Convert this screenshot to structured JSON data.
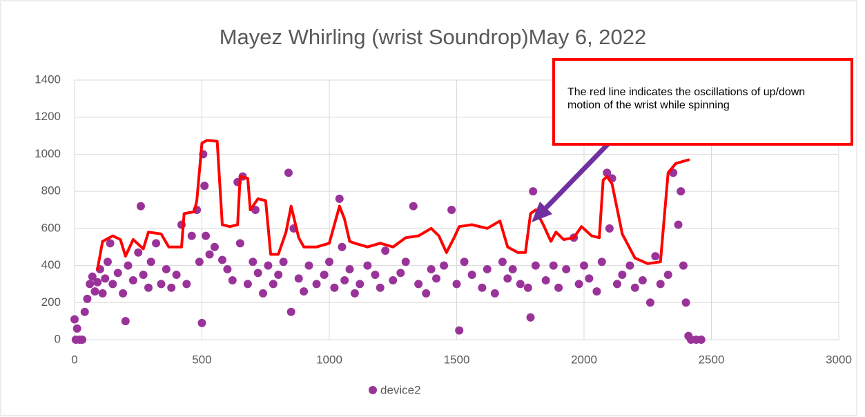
{
  "chart_data": {
    "type": "scatter",
    "title": "Mayez Whirling (wrist Soundrop)May 6, 2022",
    "annotation": "The red line indicates the oscillations of up/down motion of the wrist while spinning",
    "x": [
      0,
      5,
      10,
      20,
      30,
      40,
      50,
      60,
      70,
      80,
      90,
      100,
      110,
      120,
      130,
      140,
      150,
      170,
      190,
      200,
      210,
      230,
      250,
      260,
      270,
      290,
      300,
      320,
      340,
      360,
      380,
      400,
      420,
      440,
      460,
      480,
      490,
      500,
      505,
      510,
      515,
      530,
      550,
      580,
      600,
      620,
      640,
      650,
      660,
      680,
      700,
      710,
      720,
      740,
      760,
      780,
      800,
      820,
      840,
      850,
      860,
      880,
      900,
      920,
      950,
      980,
      1000,
      1020,
      1040,
      1050,
      1060,
      1080,
      1100,
      1120,
      1150,
      1180,
      1200,
      1220,
      1250,
      1280,
      1300,
      1330,
      1350,
      1380,
      1400,
      1420,
      1450,
      1480,
      1500,
      1510,
      1530,
      1560,
      1600,
      1620,
      1650,
      1680,
      1700,
      1720,
      1750,
      1780,
      1790,
      1800,
      1810,
      1830,
      1850,
      1880,
      1900,
      1930,
      1960,
      1980,
      2000,
      2020,
      2050,
      2070,
      2090,
      2100,
      2110,
      2130,
      2150,
      2180,
      2200,
      2230,
      2260,
      2280,
      2300,
      2330,
      2350,
      2370,
      2380,
      2390,
      2400,
      2410,
      2420,
      2440,
      2460
    ],
    "series": [
      {
        "name": "device2",
        "color": "#993399",
        "values": [
          110,
          0,
          60,
          0,
          0,
          150,
          220,
          300,
          340,
          260,
          310,
          380,
          250,
          330,
          420,
          520,
          300,
          360,
          250,
          100,
          400,
          320,
          470,
          720,
          350,
          280,
          420,
          520,
          300,
          380,
          280,
          350,
          620,
          300,
          560,
          700,
          420,
          90,
          1000,
          830,
          560,
          460,
          500,
          430,
          380,
          320,
          850,
          520,
          880,
          300,
          420,
          700,
          360,
          250,
          400,
          300,
          350,
          420,
          900,
          150,
          600,
          330,
          260,
          400,
          300,
          350,
          420,
          280,
          760,
          500,
          320,
          380,
          250,
          300,
          400,
          350,
          280,
          480,
          320,
          360,
          420,
          720,
          300,
          250,
          380,
          330,
          400,
          700,
          300,
          50,
          420,
          350,
          280,
          380,
          250,
          420,
          330,
          380,
          300,
          280,
          120,
          800,
          400,
          700,
          320,
          400,
          280,
          380,
          550,
          300,
          400,
          330,
          260,
          420,
          900,
          600,
          870,
          300,
          350,
          400,
          280,
          320,
          200,
          450,
          300,
          350,
          900,
          620,
          800,
          400,
          200,
          20,
          0,
          0,
          0
        ]
      }
    ],
    "xlim": [
      0,
      3000
    ],
    "xticks": [
      0,
      500,
      1000,
      1500,
      2000,
      2500,
      3000
    ],
    "ylim": [
      0,
      1400
    ],
    "yticks": [
      0,
      200,
      400,
      600,
      800,
      1000,
      1200,
      1400
    ],
    "grid": true,
    "legend": "bottom"
  }
}
